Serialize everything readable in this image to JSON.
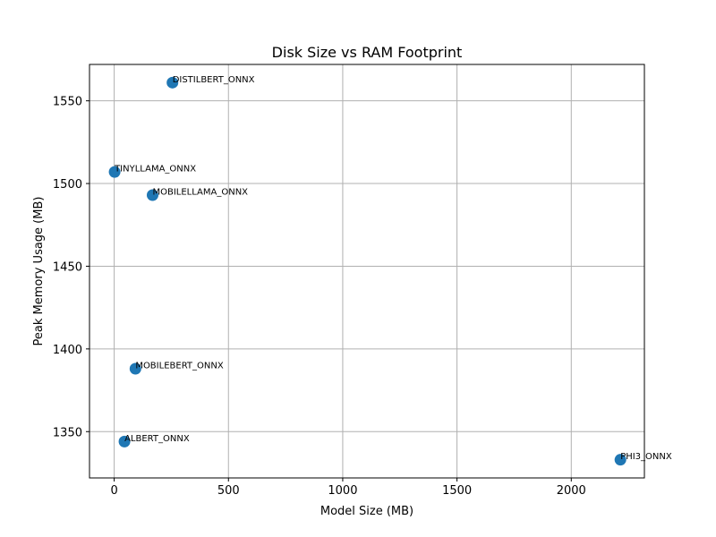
{
  "chart_data": {
    "type": "scatter",
    "title": "Disk Size vs RAM Footprint",
    "xlabel": "Model Size (MB)",
    "ylabel": "Peak Memory Usage (MB)",
    "xlim": [
      -108,
      2320
    ],
    "ylim": [
      1322,
      1572
    ],
    "xticks": [
      0,
      500,
      1000,
      1500,
      2000
    ],
    "yticks": [
      1350,
      1400,
      1450,
      1500,
      1550
    ],
    "grid": true,
    "marker_color": "#1f77b4",
    "points": [
      {
        "label": "DISTILBERT_ONNX",
        "x": 255,
        "y": 1561
      },
      {
        "label": "TINYLLAMA_ONNX",
        "x": 2,
        "y": 1507
      },
      {
        "label": "MOBILELLAMA_ONNX",
        "x": 168,
        "y": 1493
      },
      {
        "label": "MOBILEBERT_ONNX",
        "x": 93,
        "y": 1388
      },
      {
        "label": "ALBERT_ONNX",
        "x": 45,
        "y": 1344
      },
      {
        "label": "PHI3_ONNX",
        "x": 2215,
        "y": 1333
      }
    ]
  }
}
